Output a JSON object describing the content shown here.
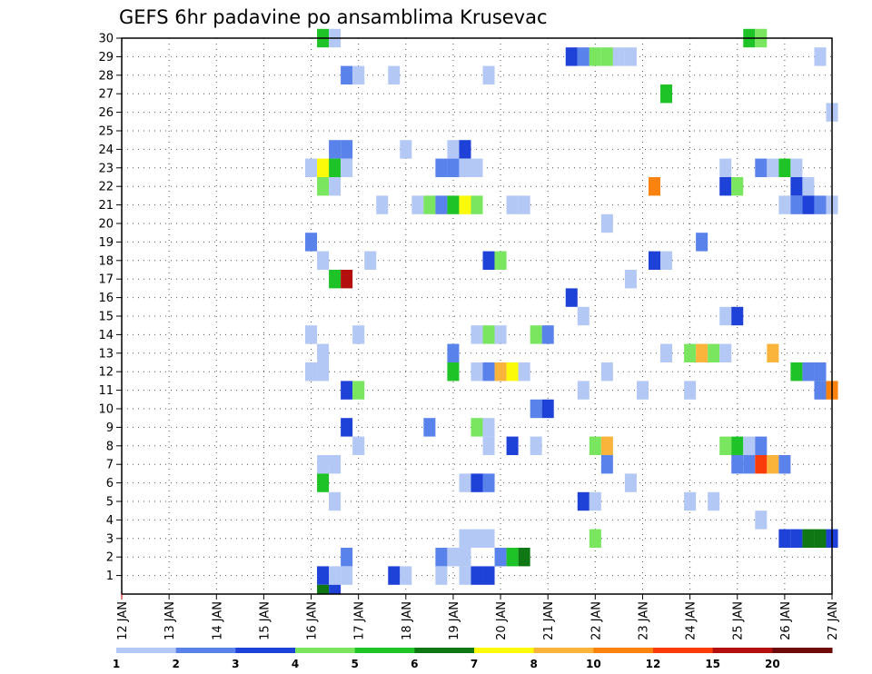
{
  "chart_data": {
    "type": "heatmap",
    "title": "GEFS 6hr padavine po ansamblima Krusevac",
    "xlabel": "",
    "ylabel": "",
    "x_tick_labels": [
      "12 JAN",
      "13 JAN",
      "14 JAN",
      "15 JAN",
      "16 JAN",
      "17 JAN",
      "18 JAN",
      "19 JAN",
      "20 JAN",
      "21 JAN",
      "22 JAN",
      "23 JAN",
      "24 JAN",
      "25 JAN",
      "26 JAN",
      "27 JAN"
    ],
    "x_range_days": [
      12,
      27
    ],
    "y_tick_labels": [
      "1",
      "2",
      "3",
      "4",
      "5",
      "6",
      "7",
      "8",
      "9",
      "10",
      "11",
      "12",
      "13",
      "14",
      "15",
      "16",
      "17",
      "18",
      "19",
      "20",
      "21",
      "22",
      "23",
      "24",
      "25",
      "26",
      "27",
      "28",
      "29",
      "30"
    ],
    "y_range": [
      0,
      30
    ],
    "grid": true,
    "legend_placement": "bottom",
    "legend_labels": [
      "1",
      "2",
      "3",
      "4",
      "5",
      "6",
      "7",
      "8",
      "10",
      "12",
      "15",
      "20"
    ],
    "levels": [
      1,
      2,
      3,
      4,
      5,
      6,
      7,
      8,
      10,
      12,
      15,
      20
    ],
    "colors": [
      "#b4c8f5",
      "#5a82eb",
      "#1e41d7",
      "#7ae660",
      "#1ec328",
      "#0f7814",
      "#fafa0a",
      "#fab43c",
      "#fa820f",
      "#fa3c0a",
      "#b40f0f",
      "#6e0a0a"
    ],
    "value_units": "level index (0 = first color band)",
    "cells": [
      {
        "member": 30,
        "day": 16.25,
        "level": 4
      },
      {
        "member": 30,
        "day": 16.5,
        "level": 0
      },
      {
        "member": 30,
        "day": 25.25,
        "level": 4
      },
      {
        "member": 30,
        "day": 25.5,
        "level": 3
      },
      {
        "member": 29,
        "day": 21.5,
        "level": 2
      },
      {
        "member": 29,
        "day": 21.75,
        "level": 1
      },
      {
        "member": 29,
        "day": 22.0,
        "level": 3
      },
      {
        "member": 29,
        "day": 22.25,
        "level": 3
      },
      {
        "member": 29,
        "day": 22.5,
        "level": 0
      },
      {
        "member": 29,
        "day": 22.75,
        "level": 0
      },
      {
        "member": 29,
        "day": 26.75,
        "level": 0
      },
      {
        "member": 28,
        "day": 16.75,
        "level": 1
      },
      {
        "member": 28,
        "day": 17.0,
        "level": 0
      },
      {
        "member": 28,
        "day": 17.75,
        "level": 0
      },
      {
        "member": 28,
        "day": 19.75,
        "level": 0
      },
      {
        "member": 27,
        "day": 23.5,
        "level": 4
      },
      {
        "member": 26,
        "day": 27.0,
        "level": 0
      },
      {
        "member": 24,
        "day": 16.5,
        "level": 1
      },
      {
        "member": 24,
        "day": 16.75,
        "level": 1
      },
      {
        "member": 24,
        "day": 18.0,
        "level": 0
      },
      {
        "member": 24,
        "day": 19.0,
        "level": 0
      },
      {
        "member": 24,
        "day": 19.25,
        "level": 2
      },
      {
        "member": 23,
        "day": 16.0,
        "level": 0
      },
      {
        "member": 23,
        "day": 16.25,
        "level": 6
      },
      {
        "member": 23,
        "day": 16.5,
        "level": 4
      },
      {
        "member": 23,
        "day": 16.75,
        "level": 0
      },
      {
        "member": 23,
        "day": 18.75,
        "level": 1
      },
      {
        "member": 23,
        "day": 19.0,
        "level": 1
      },
      {
        "member": 23,
        "day": 19.25,
        "level": 0
      },
      {
        "member": 23,
        "day": 19.5,
        "level": 0
      },
      {
        "member": 23,
        "day": 24.75,
        "level": 0
      },
      {
        "member": 23,
        "day": 25.5,
        "level": 1
      },
      {
        "member": 23,
        "day": 25.75,
        "level": 0
      },
      {
        "member": 23,
        "day": 26.0,
        "level": 4
      },
      {
        "member": 23,
        "day": 26.25,
        "level": 0
      },
      {
        "member": 22,
        "day": 16.25,
        "level": 3
      },
      {
        "member": 22,
        "day": 16.5,
        "level": 0
      },
      {
        "member": 22,
        "day": 23.25,
        "level": 8
      },
      {
        "member": 22,
        "day": 24.75,
        "level": 2
      },
      {
        "member": 22,
        "day": 25.0,
        "level": 3
      },
      {
        "member": 22,
        "day": 26.25,
        "level": 2
      },
      {
        "member": 22,
        "day": 26.5,
        "level": 0
      },
      {
        "member": 21,
        "day": 17.5,
        "level": 0
      },
      {
        "member": 21,
        "day": 18.25,
        "level": 0
      },
      {
        "member": 21,
        "day": 18.5,
        "level": 3
      },
      {
        "member": 21,
        "day": 18.75,
        "level": 1
      },
      {
        "member": 21,
        "day": 19.0,
        "level": 4
      },
      {
        "member": 21,
        "day": 19.25,
        "level": 6
      },
      {
        "member": 21,
        "day": 19.5,
        "level": 3
      },
      {
        "member": 21,
        "day": 20.25,
        "level": 0
      },
      {
        "member": 21,
        "day": 20.5,
        "level": 0
      },
      {
        "member": 21,
        "day": 26.0,
        "level": 0
      },
      {
        "member": 21,
        "day": 26.25,
        "level": 1
      },
      {
        "member": 21,
        "day": 26.5,
        "level": 2
      },
      {
        "member": 21,
        "day": 26.75,
        "level": 1
      },
      {
        "member": 21,
        "day": 27.0,
        "level": 0
      },
      {
        "member": 20,
        "day": 22.25,
        "level": 0
      },
      {
        "member": 19,
        "day": 16.0,
        "level": 1
      },
      {
        "member": 19,
        "day": 24.25,
        "level": 1
      },
      {
        "member": 18,
        "day": 16.25,
        "level": 0
      },
      {
        "member": 18,
        "day": 17.25,
        "level": 0
      },
      {
        "member": 18,
        "day": 19.75,
        "level": 2
      },
      {
        "member": 18,
        "day": 20.0,
        "level": 3
      },
      {
        "member": 18,
        "day": 23.25,
        "level": 2
      },
      {
        "member": 18,
        "day": 23.5,
        "level": 0
      },
      {
        "member": 17,
        "day": 16.5,
        "level": 4
      },
      {
        "member": 17,
        "day": 16.75,
        "level": 10
      },
      {
        "member": 17,
        "day": 22.75,
        "level": 0
      },
      {
        "member": 16,
        "day": 21.5,
        "level": 2
      },
      {
        "member": 15,
        "day": 21.75,
        "level": 0
      },
      {
        "member": 15,
        "day": 24.75,
        "level": 0
      },
      {
        "member": 15,
        "day": 25.0,
        "level": 2
      },
      {
        "member": 14,
        "day": 16.0,
        "level": 0
      },
      {
        "member": 14,
        "day": 17.0,
        "level": 0
      },
      {
        "member": 14,
        "day": 19.5,
        "level": 0
      },
      {
        "member": 14,
        "day": 19.75,
        "level": 3
      },
      {
        "member": 14,
        "day": 20.0,
        "level": 0
      },
      {
        "member": 14,
        "day": 20.75,
        "level": 3
      },
      {
        "member": 14,
        "day": 21.0,
        "level": 1
      },
      {
        "member": 13,
        "day": 16.25,
        "level": 0
      },
      {
        "member": 13,
        "day": 19.0,
        "level": 1
      },
      {
        "member": 13,
        "day": 23.5,
        "level": 0
      },
      {
        "member": 13,
        "day": 24.0,
        "level": 3
      },
      {
        "member": 13,
        "day": 24.25,
        "level": 7
      },
      {
        "member": 13,
        "day": 24.5,
        "level": 3
      },
      {
        "member": 13,
        "day": 24.75,
        "level": 0
      },
      {
        "member": 13,
        "day": 25.75,
        "level": 7
      },
      {
        "member": 12,
        "day": 16.0,
        "level": 0
      },
      {
        "member": 12,
        "day": 16.25,
        "level": 0
      },
      {
        "member": 12,
        "day": 19.0,
        "level": 4
      },
      {
        "member": 12,
        "day": 19.5,
        "level": 0
      },
      {
        "member": 12,
        "day": 19.75,
        "level": 1
      },
      {
        "member": 12,
        "day": 20.0,
        "level": 7
      },
      {
        "member": 12,
        "day": 20.25,
        "level": 6
      },
      {
        "member": 12,
        "day": 20.5,
        "level": 0
      },
      {
        "member": 12,
        "day": 22.25,
        "level": 0
      },
      {
        "member": 12,
        "day": 26.25,
        "level": 4
      },
      {
        "member": 12,
        "day": 26.5,
        "level": 1
      },
      {
        "member": 12,
        "day": 26.75,
        "level": 1
      },
      {
        "member": 11,
        "day": 16.75,
        "level": 2
      },
      {
        "member": 11,
        "day": 17.0,
        "level": 3
      },
      {
        "member": 11,
        "day": 21.75,
        "level": 0
      },
      {
        "member": 11,
        "day": 23.0,
        "level": 0
      },
      {
        "member": 11,
        "day": 24.0,
        "level": 0
      },
      {
        "member": 11,
        "day": 26.75,
        "level": 1
      },
      {
        "member": 11,
        "day": 27.0,
        "level": 8
      },
      {
        "member": 10,
        "day": 20.75,
        "level": 1
      },
      {
        "member": 10,
        "day": 21.0,
        "level": 2
      },
      {
        "member": 9,
        "day": 16.75,
        "level": 2
      },
      {
        "member": 9,
        "day": 18.5,
        "level": 1
      },
      {
        "member": 9,
        "day": 19.5,
        "level": 3
      },
      {
        "member": 9,
        "day": 19.75,
        "level": 0
      },
      {
        "member": 8,
        "day": 17.0,
        "level": 0
      },
      {
        "member": 8,
        "day": 19.75,
        "level": 0
      },
      {
        "member": 8,
        "day": 20.25,
        "level": 2
      },
      {
        "member": 8,
        "day": 20.75,
        "level": 0
      },
      {
        "member": 8,
        "day": 22.0,
        "level": 3
      },
      {
        "member": 8,
        "day": 22.25,
        "level": 7
      },
      {
        "member": 8,
        "day": 24.75,
        "level": 3
      },
      {
        "member": 8,
        "day": 25.0,
        "level": 4
      },
      {
        "member": 8,
        "day": 25.25,
        "level": 0
      },
      {
        "member": 8,
        "day": 25.5,
        "level": 1
      },
      {
        "member": 7,
        "day": 16.25,
        "level": 0
      },
      {
        "member": 7,
        "day": 16.5,
        "level": 0
      },
      {
        "member": 7,
        "day": 22.25,
        "level": 1
      },
      {
        "member": 7,
        "day": 25.0,
        "level": 1
      },
      {
        "member": 7,
        "day": 25.25,
        "level": 1
      },
      {
        "member": 7,
        "day": 25.5,
        "level": 9
      },
      {
        "member": 7,
        "day": 25.75,
        "level": 7
      },
      {
        "member": 7,
        "day": 26.0,
        "level": 1
      },
      {
        "member": 6,
        "day": 16.25,
        "level": 4
      },
      {
        "member": 6,
        "day": 19.25,
        "level": 0
      },
      {
        "member": 6,
        "day": 19.5,
        "level": 2
      },
      {
        "member": 6,
        "day": 19.75,
        "level": 1
      },
      {
        "member": 6,
        "day": 22.75,
        "level": 0
      },
      {
        "member": 5,
        "day": 16.5,
        "level": 0
      },
      {
        "member": 5,
        "day": 21.75,
        "level": 2
      },
      {
        "member": 5,
        "day": 22.0,
        "level": 0
      },
      {
        "member": 5,
        "day": 24.0,
        "level": 0
      },
      {
        "member": 5,
        "day": 24.5,
        "level": 0
      },
      {
        "member": 4,
        "day": 25.5,
        "level": 0
      },
      {
        "member": 3,
        "day": 19.25,
        "level": 0
      },
      {
        "member": 3,
        "day": 19.5,
        "level": 0
      },
      {
        "member": 3,
        "day": 19.75,
        "level": 0
      },
      {
        "member": 3,
        "day": 22.0,
        "level": 3
      },
      {
        "member": 3,
        "day": 26.0,
        "level": 2
      },
      {
        "member": 3,
        "day": 26.25,
        "level": 2
      },
      {
        "member": 3,
        "day": 26.5,
        "level": 5
      },
      {
        "member": 3,
        "day": 26.75,
        "level": 5
      },
      {
        "member": 3,
        "day": 27.0,
        "level": 2
      },
      {
        "member": 2,
        "day": 16.75,
        "level": 1
      },
      {
        "member": 2,
        "day": 18.75,
        "level": 1
      },
      {
        "member": 2,
        "day": 19.0,
        "level": 0
      },
      {
        "member": 2,
        "day": 19.25,
        "level": 0
      },
      {
        "member": 2,
        "day": 20.0,
        "level": 1
      },
      {
        "member": 2,
        "day": 20.25,
        "level": 4
      },
      {
        "member": 2,
        "day": 20.5,
        "level": 5
      },
      {
        "member": 1,
        "day": 16.25,
        "level": 2
      },
      {
        "member": 1,
        "day": 16.5,
        "level": 0
      },
      {
        "member": 1,
        "day": 16.75,
        "level": 0
      },
      {
        "member": 1,
        "day": 17.75,
        "level": 2
      },
      {
        "member": 1,
        "day": 18.0,
        "level": 0
      },
      {
        "member": 1,
        "day": 18.75,
        "level": 0
      },
      {
        "member": 1,
        "day": 19.25,
        "level": 0
      },
      {
        "member": 1,
        "day": 19.5,
        "level": 2
      },
      {
        "member": 1,
        "day": 19.75,
        "level": 2
      },
      {
        "member": 0,
        "day": 16.25,
        "level": 5
      },
      {
        "member": 0,
        "day": 16.5,
        "level": 2
      }
    ]
  }
}
